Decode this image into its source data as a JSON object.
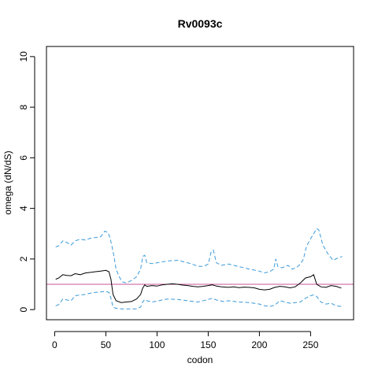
{
  "chart_data": {
    "type": "line",
    "title": "Rv0093c",
    "xlabel": "codon",
    "ylabel": "omega (dN/dS)",
    "xlim": [
      -8,
      292
    ],
    "ylim": [
      -0.4,
      10.4
    ],
    "x_ticks": [
      0,
      50,
      100,
      150,
      200,
      250
    ],
    "y_ticks": [
      0,
      2,
      4,
      6,
      8,
      10
    ],
    "grid": false,
    "reference_line": {
      "y": 1,
      "color": "#c8559b"
    },
    "series": [
      {
        "role": "estimate",
        "color": "#000000",
        "style": "solid",
        "x": [
          1,
          4,
          8,
          12,
          16,
          20,
          25,
          30,
          35,
          40,
          45,
          50,
          53,
          55,
          57,
          60,
          65,
          70,
          75,
          80,
          84,
          86,
          88,
          90,
          95,
          100,
          105,
          110,
          115,
          120,
          125,
          130,
          135,
          140,
          145,
          150,
          154,
          158,
          163,
          170,
          175,
          180,
          185,
          190,
          195,
          200,
          205,
          210,
          215,
          220,
          225,
          230,
          235,
          240,
          245,
          250,
          253,
          256,
          260,
          265,
          270,
          275,
          280
        ],
        "y": [
          1.2,
          1.25,
          1.38,
          1.35,
          1.34,
          1.42,
          1.38,
          1.45,
          1.47,
          1.5,
          1.52,
          1.55,
          1.5,
          1.2,
          0.6,
          0.35,
          0.28,
          0.3,
          0.32,
          0.42,
          0.6,
          0.85,
          0.98,
          0.92,
          0.95,
          0.93,
          0.98,
          1.0,
          1.02,
          1.0,
          0.97,
          0.95,
          0.92,
          0.9,
          0.92,
          0.95,
          0.98,
          0.93,
          0.9,
          0.88,
          0.9,
          0.87,
          0.89,
          0.88,
          0.86,
          0.8,
          0.78,
          0.8,
          0.88,
          0.92,
          0.9,
          0.86,
          0.9,
          1.05,
          1.25,
          1.3,
          1.38,
          1.0,
          0.9,
          0.88,
          0.95,
          0.92,
          0.85
        ]
      },
      {
        "role": "upper bound",
        "color": "#3a9ad9",
        "style": "dashed",
        "x": [
          1,
          4,
          8,
          12,
          16,
          20,
          25,
          30,
          35,
          40,
          45,
          49,
          52,
          54,
          56,
          58,
          60,
          63,
          66,
          70,
          75,
          80,
          84,
          86,
          88,
          90,
          95,
          100,
          110,
          120,
          130,
          140,
          145,
          150,
          153,
          155,
          158,
          163,
          170,
          180,
          190,
          200,
          205,
          210,
          214,
          216,
          218,
          222,
          228,
          232,
          236,
          240,
          243,
          246,
          250,
          253,
          256,
          258,
          262,
          267,
          272,
          277,
          281
        ],
        "y": [
          2.48,
          2.52,
          2.72,
          2.65,
          2.55,
          2.72,
          2.78,
          2.75,
          2.82,
          2.85,
          2.88,
          3.1,
          3.05,
          2.85,
          2.5,
          2.1,
          1.6,
          1.3,
          1.1,
          1.05,
          1.15,
          1.3,
          1.6,
          2.1,
          2.15,
          1.85,
          1.82,
          1.85,
          1.92,
          1.95,
          1.85,
          1.72,
          1.7,
          1.8,
          2.3,
          2.35,
          1.85,
          1.75,
          1.8,
          1.7,
          1.6,
          1.52,
          1.45,
          1.5,
          1.6,
          2.0,
          1.7,
          1.65,
          1.75,
          1.6,
          1.65,
          1.8,
          2.0,
          2.5,
          2.8,
          3.0,
          3.2,
          3.15,
          2.55,
          2.2,
          1.95,
          2.05,
          2.1
        ]
      },
      {
        "role": "lower bound",
        "color": "#3a9ad9",
        "style": "dashed",
        "x": [
          1,
          4,
          8,
          12,
          16,
          20,
          25,
          30,
          35,
          40,
          45,
          50,
          53,
          55,
          57,
          60,
          65,
          70,
          75,
          80,
          84,
          86,
          88,
          90,
          95,
          100,
          105,
          110,
          120,
          130,
          140,
          150,
          154,
          158,
          165,
          170,
          180,
          190,
          200,
          205,
          210,
          215,
          220,
          225,
          230,
          240,
          245,
          250,
          253,
          256,
          260,
          265,
          270,
          275,
          281
        ],
        "y": [
          0.15,
          0.2,
          0.42,
          0.38,
          0.35,
          0.55,
          0.58,
          0.6,
          0.65,
          0.68,
          0.7,
          0.72,
          0.68,
          0.45,
          0.1,
          0.05,
          0.03,
          0.03,
          0.03,
          0.03,
          0.1,
          0.3,
          0.4,
          0.35,
          0.3,
          0.33,
          0.38,
          0.42,
          0.4,
          0.35,
          0.3,
          0.4,
          0.45,
          0.38,
          0.32,
          0.35,
          0.3,
          0.28,
          0.22,
          0.15,
          0.12,
          0.18,
          0.35,
          0.3,
          0.25,
          0.3,
          0.45,
          0.55,
          0.58,
          0.52,
          0.3,
          0.22,
          0.25,
          0.15,
          0.12
        ]
      }
    ]
  }
}
